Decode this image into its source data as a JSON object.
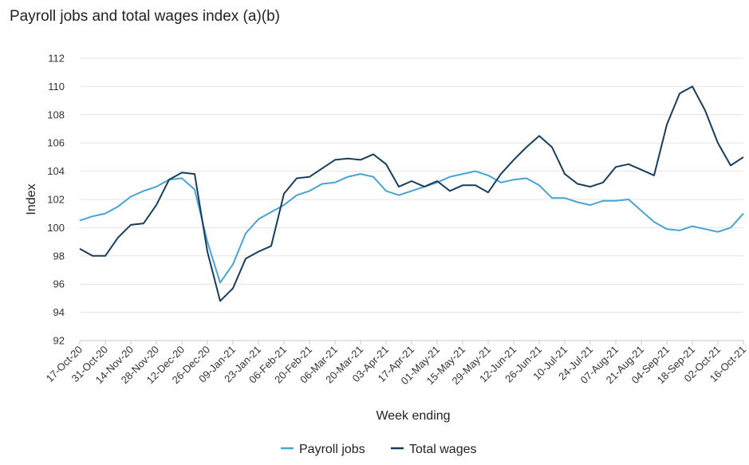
{
  "title": "Payroll jobs and total wages index (a)(b)",
  "chart_data": {
    "type": "line",
    "title": "Payroll jobs and total wages index (a)(b)",
    "xlabel": "Week ending",
    "ylabel": "Index",
    "ylim": [
      92,
      112
    ],
    "yticks": [
      92,
      94,
      96,
      98,
      100,
      102,
      104,
      106,
      108,
      110,
      112
    ],
    "grid": true,
    "legend_position": "bottom",
    "x": [
      "17-Oct-20",
      "24-Oct-20",
      "31-Oct-20",
      "07-Nov-20",
      "14-Nov-20",
      "21-Nov-20",
      "28-Nov-20",
      "05-Dec-20",
      "12-Dec-20",
      "19-Dec-20",
      "26-Dec-20",
      "02-Jan-21",
      "09-Jan-21",
      "16-Jan-21",
      "23-Jan-21",
      "30-Jan-21",
      "06-Feb-21",
      "13-Feb-21",
      "20-Feb-21",
      "27-Feb-21",
      "06-Mar-21",
      "13-Mar-21",
      "20-Mar-21",
      "27-Mar-21",
      "03-Apr-21",
      "10-Apr-21",
      "17-Apr-21",
      "24-Apr-21",
      "01-May-21",
      "08-May-21",
      "15-May-21",
      "22-May-21",
      "29-May-21",
      "05-Jun-21",
      "12-Jun-21",
      "19-Jun-21",
      "26-Jun-21",
      "03-Jul-21",
      "10-Jul-21",
      "17-Jul-21",
      "24-Jul-21",
      "31-Jul-21",
      "07-Aug-21",
      "14-Aug-21",
      "21-Aug-21",
      "28-Aug-21",
      "04-Sep-21",
      "11-Sep-21",
      "18-Sep-21",
      "25-Sep-21",
      "02-Oct-21",
      "09-Oct-21",
      "16-Oct-21"
    ],
    "x_tick_labels": [
      "17-Oct-20",
      "31-Oct-20",
      "14-Nov-20",
      "28-Nov-20",
      "12-Dec-20",
      "26-Dec-20",
      "09-Jan-21",
      "23-Jan-21",
      "06-Feb-21",
      "20-Feb-21",
      "06-Mar-21",
      "20-Mar-21",
      "03-Apr-21",
      "17-Apr-21",
      "01-May-21",
      "15-May-21",
      "29-May-21",
      "12-Jun-21",
      "26-Jun-21",
      "10-Jul-21",
      "24-Jul-21",
      "07-Aug-21",
      "21-Aug-21",
      "04-Sep-21",
      "18-Sep-21",
      "02-Oct-21",
      "16-Oct-21"
    ],
    "series": [
      {
        "name": "Payroll jobs",
        "color": "#4aa3d4",
        "values": [
          100.5,
          100.8,
          101.0,
          101.5,
          102.2,
          102.6,
          102.9,
          103.4,
          103.5,
          102.7,
          99.0,
          96.1,
          97.4,
          99.6,
          100.6,
          101.1,
          101.6,
          102.3,
          102.6,
          103.1,
          103.2,
          103.6,
          103.8,
          103.6,
          102.6,
          102.3,
          102.6,
          102.9,
          103.2,
          103.6,
          103.8,
          104.0,
          103.7,
          103.2,
          103.4,
          103.5,
          103.0,
          102.1,
          102.1,
          101.8,
          101.6,
          101.9,
          101.9,
          102.0,
          101.2,
          100.4,
          99.9,
          99.8,
          100.1,
          99.9,
          99.7,
          100.0,
          101.0
        ]
      },
      {
        "name": "Total wages",
        "color": "#173e5f",
        "values": [
          98.5,
          98.0,
          98.0,
          99.3,
          100.2,
          100.3,
          101.6,
          103.4,
          103.9,
          103.8,
          98.3,
          94.8,
          95.7,
          97.8,
          98.3,
          98.7,
          102.4,
          103.5,
          103.6,
          104.2,
          104.8,
          104.9,
          104.8,
          105.2,
          104.5,
          102.9,
          103.3,
          102.9,
          103.3,
          102.6,
          103.0,
          103.0,
          102.5,
          103.8,
          104.8,
          105.7,
          106.5,
          105.7,
          103.8,
          103.1,
          102.9,
          103.2,
          104.3,
          104.5,
          104.1,
          103.7,
          107.3,
          109.5,
          110.0,
          108.3,
          106.0,
          104.4,
          105.0
        ]
      }
    ]
  }
}
